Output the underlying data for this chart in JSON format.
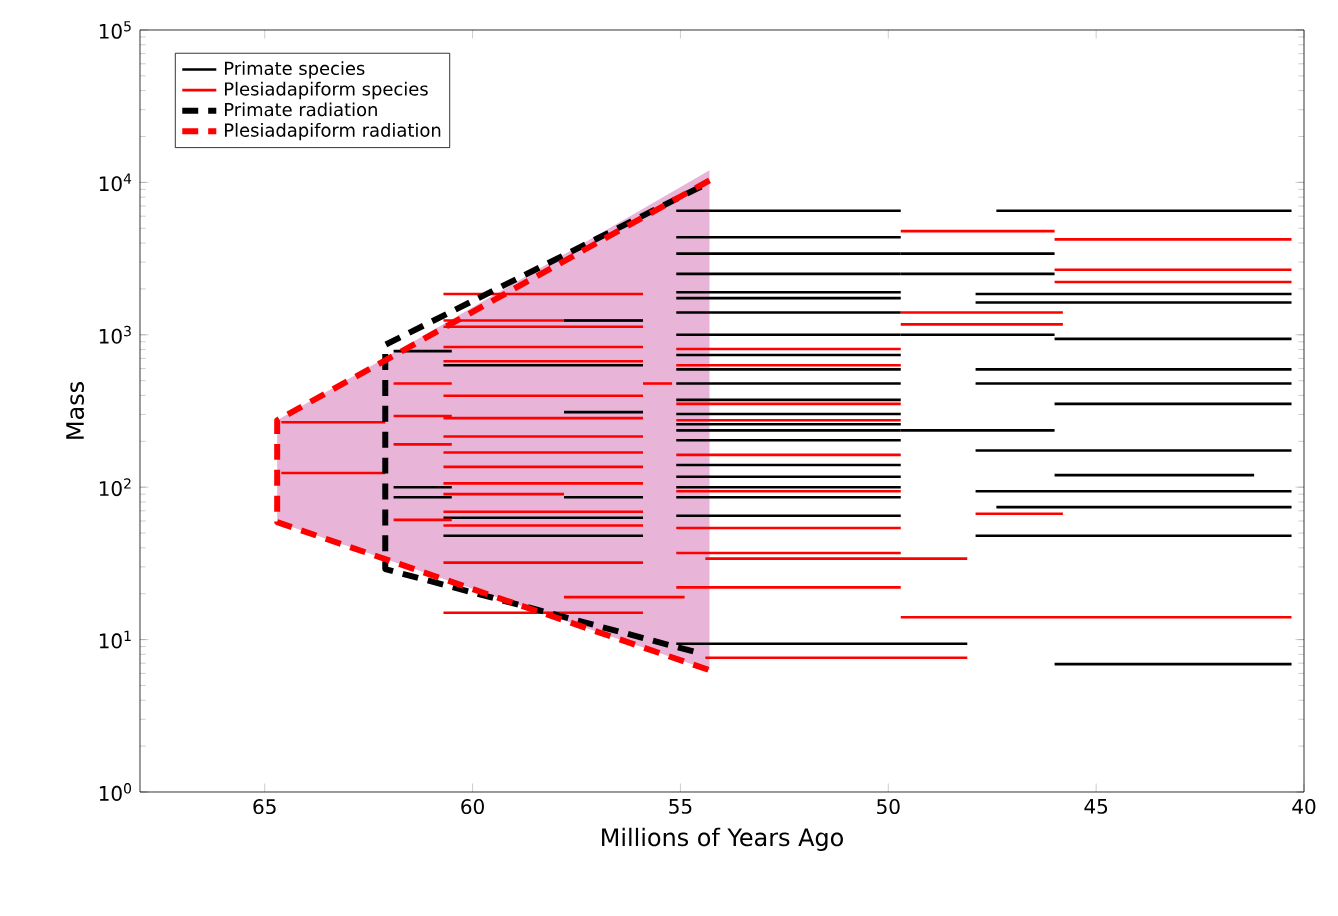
{
  "chart_data": {
    "type": "line",
    "xlabel": "Millions of Years Ago",
    "ylabel": "Mass",
    "log": "y",
    "legend": "top left",
    "line_style": "solid",
    "xlim": [
      68,
      40
    ],
    "xticks": [
      65,
      60,
      55,
      50,
      45,
      40
    ],
    "ylim": [
      1,
      100000
    ],
    "yticks": [
      {
        "value": 1,
        "label": "10$^{0}$"
      },
      {
        "value": 10,
        "label": "10$^{1}$"
      },
      {
        "value": 100,
        "label": "10$^{2}$"
      },
      {
        "value": 1000,
        "label": "10$^{3}$"
      },
      {
        "value": 10000,
        "label": "10$^{4}$"
      },
      {
        "value": 100000,
        "label": "10$^{5}$"
      }
    ],
    "series": [
      {
        "type": "line",
        "color": "#e8b4d8",
        "x": [
          64.7,
          54.3
        ],
        "values": [
          null,
          null
        ],
        "upper": [
          275,
          12000
        ],
        "lower": [
          59,
          6.3
        ]
      },
      {
        "name": "Primate species",
        "color": "#000000",
        "x": [
          55.1,
          49.7
        ],
        "values": [
          6510,
          6510
        ]
      },
      {
        "name": "Plesiadapiform species",
        "color": "#ff0000",
        "x": [
          60.7,
          55.9
        ],
        "values": [
          1850,
          1850
        ]
      },
      {
        "color": "#ff0000",
        "x": [
          60.7,
          55.9
        ],
        "values": [
          1240,
          1240
        ]
      },
      {
        "color": "#ff0000",
        "x": [
          60.7,
          55.9
        ],
        "values": [
          1130,
          1130
        ]
      },
      {
        "color": "#ff0000",
        "x": [
          60.7,
          55.9
        ],
        "values": [
          832,
          832
        ]
      },
      {
        "color": "#ff0000",
        "x": [
          60.7,
          55.9
        ],
        "values": [
          671,
          671
        ]
      },
      {
        "color": "#ff0000",
        "x": [
          60.7,
          55.9
        ],
        "values": [
          398,
          398
        ]
      },
      {
        "color": "#ff0000",
        "x": [
          60.7,
          55.9
        ],
        "values": [
          284,
          284
        ]
      },
      {
        "color": "#ff0000",
        "x": [
          60.7,
          55.9
        ],
        "values": [
          215,
          215
        ]
      },
      {
        "color": "#ff0000",
        "x": [
          60.7,
          55.9
        ],
        "values": [
          169,
          169
        ]
      },
      {
        "color": "#ff0000",
        "x": [
          60.7,
          55.9
        ],
        "values": [
          136,
          136
        ]
      },
      {
        "color": "#ff0000",
        "x": [
          60.7,
          55.9
        ],
        "values": [
          106,
          106
        ]
      },
      {
        "color": "#ff0000",
        "x": [
          60.7,
          55.9
        ],
        "values": [
          69,
          69
        ]
      },
      {
        "color": "#ff0000",
        "x": [
          60.7,
          55.9
        ],
        "values": [
          56,
          56
        ]
      },
      {
        "color": "#ff0000",
        "x": [
          60.7,
          55.9
        ],
        "values": [
          32,
          32
        ]
      },
      {
        "color": "#ff0000",
        "x": [
          60.7,
          55.9
        ],
        "values": [
          15,
          15
        ]
      },
      {
        "color": "#ff0000",
        "x": [
          60.7,
          57.8
        ],
        "values": [
          90,
          90
        ]
      },
      {
        "color": "#000000",
        "x": [
          57.8,
          55.9
        ],
        "values": [
          1240,
          1240
        ]
      },
      {
        "color": "#000000",
        "x": [
          57.8,
          55.9
        ],
        "values": [
          311,
          311
        ]
      },
      {
        "color": "#000000",
        "x": [
          57.8,
          55.9
        ],
        "values": [
          86,
          86
        ]
      },
      {
        "color": "#000000",
        "x": [
          60.7,
          55.9
        ],
        "values": [
          631,
          631
        ]
      },
      {
        "color": "#000000",
        "x": [
          60.7,
          55.9
        ],
        "values": [
          63,
          63
        ]
      },
      {
        "color": "#000000",
        "x": [
          60.7,
          55.9
        ],
        "values": [
          48,
          48
        ]
      },
      {
        "color": "#000000",
        "x": [
          61.9,
          60.5
        ],
        "values": [
          781,
          781
        ]
      },
      {
        "color": "#000000",
        "x": [
          61.9,
          60.5
        ],
        "values": [
          100,
          100
        ]
      },
      {
        "color": "#000000",
        "x": [
          61.9,
          60.5
        ],
        "values": [
          86,
          86
        ]
      },
      {
        "color": "#ff0000",
        "x": [
          61.9,
          60.5
        ],
        "values": [
          479,
          479
        ]
      },
      {
        "color": "#ff0000",
        "x": [
          61.9,
          60.5
        ],
        "values": [
          293,
          293
        ]
      },
      {
        "color": "#ff0000",
        "x": [
          61.9,
          60.5
        ],
        "values": [
          191,
          191
        ]
      },
      {
        "color": "#ff0000",
        "x": [
          61.9,
          60.5
        ],
        "values": [
          61,
          61
        ]
      },
      {
        "color": "#ff0000",
        "x": [
          64.6,
          62.1
        ],
        "values": [
          267,
          267
        ]
      },
      {
        "color": "#ff0000",
        "x": [
          64.6,
          62.1
        ],
        "values": [
          124,
          124
        ]
      },
      {
        "color": "#ff0000",
        "x": [
          57.8,
          54.9
        ],
        "values": [
          19,
          19
        ]
      },
      {
        "color": "#ff0000",
        "x": [
          55.9,
          55.2
        ],
        "values": [
          479,
          479
        ]
      },
      {
        "color": "#000000",
        "x": [
          55.1,
          49.7
        ],
        "values": [
          4370,
          4370
        ]
      },
      {
        "color": "#000000",
        "x": [
          55.1,
          49.7
        ],
        "values": [
          3410,
          3410
        ]
      },
      {
        "color": "#000000",
        "x": [
          55.1,
          49.7
        ],
        "values": [
          2510,
          2510
        ]
      },
      {
        "color": "#000000",
        "x": [
          55.1,
          49.7
        ],
        "values": [
          1900,
          1900
        ]
      },
      {
        "color": "#000000",
        "x": [
          55.1,
          49.7
        ],
        "values": [
          1740,
          1740
        ]
      },
      {
        "color": "#000000",
        "x": [
          55.1,
          49.7
        ],
        "values": [
          1400,
          1400
        ]
      },
      {
        "color": "#000000",
        "x": [
          55.1,
          49.7
        ],
        "values": [
          1000,
          1000
        ]
      },
      {
        "color": "#000000",
        "x": [
          55.1,
          49.7
        ],
        "values": [
          736,
          736
        ]
      },
      {
        "color": "#000000",
        "x": [
          55.1,
          49.7
        ],
        "values": [
          593,
          593
        ]
      },
      {
        "color": "#000000",
        "x": [
          55.1,
          49.7
        ],
        "values": [
          479,
          479
        ]
      },
      {
        "color": "#000000",
        "x": [
          55.1,
          49.7
        ],
        "values": [
          374,
          374
        ]
      },
      {
        "color": "#000000",
        "x": [
          55.1,
          49.7
        ],
        "values": [
          302,
          302
        ]
      },
      {
        "color": "#000000",
        "x": [
          55.1,
          49.7
        ],
        "values": [
          259,
          259
        ]
      },
      {
        "color": "#000000",
        "x": [
          55.1,
          49.7
        ],
        "values": [
          236,
          236
        ]
      },
      {
        "color": "#000000",
        "x": [
          55.1,
          49.7
        ],
        "values": [
          203,
          203
        ]
      },
      {
        "color": "#000000",
        "x": [
          55.1,
          49.7
        ],
        "values": [
          140,
          140
        ]
      },
      {
        "color": "#000000",
        "x": [
          55.1,
          49.7
        ],
        "values": [
          117,
          117
        ]
      },
      {
        "color": "#000000",
        "x": [
          55.1,
          49.7
        ],
        "values": [
          100,
          100
        ]
      },
      {
        "color": "#000000",
        "x": [
          55.1,
          49.7
        ],
        "values": [
          86,
          86
        ]
      },
      {
        "color": "#000000",
        "x": [
          55.1,
          49.7
        ],
        "values": [
          65,
          65
        ]
      },
      {
        "color": "#ff0000",
        "x": [
          55.1,
          49.7
        ],
        "values": [
          807,
          807
        ]
      },
      {
        "color": "#ff0000",
        "x": [
          55.1,
          49.7
        ],
        "values": [
          631,
          631
        ]
      },
      {
        "color": "#ff0000",
        "x": [
          55.1,
          49.7
        ],
        "values": [
          352,
          352
        ]
      },
      {
        "color": "#ff0000",
        "x": [
          55.1,
          49.7
        ],
        "values": [
          275,
          275
        ]
      },
      {
        "color": "#ff0000",
        "x": [
          55.1,
          49.7
        ],
        "values": [
          163,
          163
        ]
      },
      {
        "color": "#ff0000",
        "x": [
          55.1,
          49.7
        ],
        "values": [
          94,
          94
        ]
      },
      {
        "color": "#ff0000",
        "x": [
          55.1,
          49.7
        ],
        "values": [
          54,
          54
        ]
      },
      {
        "color": "#ff0000",
        "x": [
          55.1,
          49.7
        ],
        "values": [
          37,
          37
        ]
      },
      {
        "color": "#ff0000",
        "x": [
          55.1,
          49.7
        ],
        "values": [
          22,
          22
        ]
      },
      {
        "color": "#000000",
        "x": [
          55.1,
          48.1
        ],
        "values": [
          9.4,
          9.4
        ]
      },
      {
        "color": "#ff0000",
        "x": [
          54.4,
          48.1
        ],
        "values": [
          7.6,
          7.6
        ]
      },
      {
        "color": "#ff0000",
        "x": [
          54.4,
          48.1
        ],
        "values": [
          34,
          34
        ]
      },
      {
        "color": "#ff0000",
        "x": [
          49.7,
          46.0
        ],
        "values": [
          4790,
          4790
        ]
      },
      {
        "color": "#ff0000",
        "x": [
          46.0,
          40.3
        ],
        "values": [
          4230,
          4230
        ]
      },
      {
        "color": "#ff0000",
        "x": [
          46.0,
          40.3
        ],
        "values": [
          2670,
          2670
        ]
      },
      {
        "color": "#ff0000",
        "x": [
          46.0,
          40.3
        ],
        "values": [
          2220,
          2220
        ]
      },
      {
        "color": "#ff0000",
        "x": [
          49.7,
          45.8
        ],
        "values": [
          1400,
          1400
        ]
      },
      {
        "color": "#ff0000",
        "x": [
          49.7,
          45.8
        ],
        "values": [
          1170,
          1170
        ]
      },
      {
        "color": "#ff0000",
        "x": [
          47.9,
          45.8
        ],
        "values": [
          67,
          67
        ]
      },
      {
        "color": "#ff0000",
        "x": [
          49.7,
          40.3
        ],
        "values": [
          14,
          14
        ]
      },
      {
        "color": "#000000",
        "x": [
          47.4,
          40.3
        ],
        "values": [
          6510,
          6510
        ]
      },
      {
        "color": "#000000",
        "x": [
          46.0,
          40.3
        ],
        "values": [
          940,
          940
        ]
      },
      {
        "color": "#000000",
        "x": [
          46.0,
          40.3
        ],
        "values": [
          352,
          352
        ]
      },
      {
        "color": "#000000",
        "x": [
          47.9,
          40.3
        ],
        "values": [
          1850,
          1850
        ]
      },
      {
        "color": "#000000",
        "x": [
          47.9,
          40.3
        ],
        "values": [
          1630,
          1630
        ]
      },
      {
        "color": "#000000",
        "x": [
          47.9,
          40.3
        ],
        "values": [
          593,
          593
        ]
      },
      {
        "color": "#000000",
        "x": [
          47.9,
          40.3
        ],
        "values": [
          479,
          479
        ]
      },
      {
        "color": "#000000",
        "x": [
          47.9,
          40.3
        ],
        "values": [
          174,
          174
        ]
      },
      {
        "color": "#000000",
        "x": [
          47.9,
          40.3
        ],
        "values": [
          94,
          94
        ]
      },
      {
        "color": "#000000",
        "x": [
          47.4,
          40.3
        ],
        "values": [
          74,
          74
        ]
      },
      {
        "color": "#000000",
        "x": [
          47.9,
          40.3
        ],
        "values": [
          48,
          48
        ]
      },
      {
        "color": "#000000",
        "x": [
          46.0,
          41.2
        ],
        "values": [
          120,
          120
        ]
      },
      {
        "color": "#000000",
        "x": [
          46.0,
          40.3
        ],
        "values": [
          6.9,
          6.9
        ]
      },
      {
        "color": "#000000",
        "x": [
          49.7,
          46.0
        ],
        "values": [
          3410,
          3410
        ]
      },
      {
        "color": "#000000",
        "x": [
          49.7,
          46.0
        ],
        "values": [
          2510,
          2510
        ]
      },
      {
        "color": "#000000",
        "x": [
          49.7,
          46.0
        ],
        "values": [
          1000,
          1000
        ]
      },
      {
        "color": "#000000",
        "x": [
          49.7,
          46.0
        ],
        "values": [
          236,
          236
        ]
      },
      {
        "name": "Primate radiation",
        "color": "#000000",
        "line_style": "dashed",
        "x": [
          54.5,
          62.1,
          62.1,
          54.5
        ],
        "values": [
          9400,
          860,
          29,
          8.1
        ]
      },
      {
        "name": "Plesiadapiform radiation",
        "color": "#ff0000",
        "line_style": "dashed",
        "x": [
          54.3,
          64.7,
          64.7,
          54.3
        ],
        "values": [
          10300,
          275,
          59,
          6.3
        ]
      }
    ]
  }
}
